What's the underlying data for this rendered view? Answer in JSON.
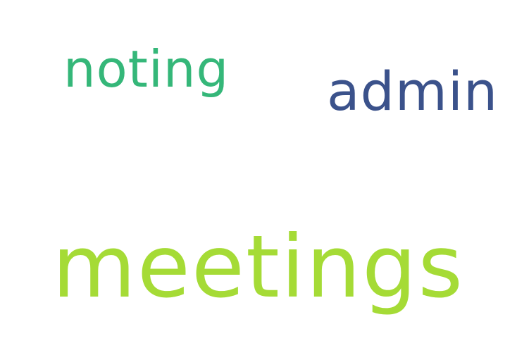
{
  "words": [
    {
      "text": "noting",
      "color": "#35b779"
    },
    {
      "text": "admin",
      "color": "#3b528b"
    },
    {
      "text": "meetings",
      "color": "#a5db36"
    }
  ]
}
